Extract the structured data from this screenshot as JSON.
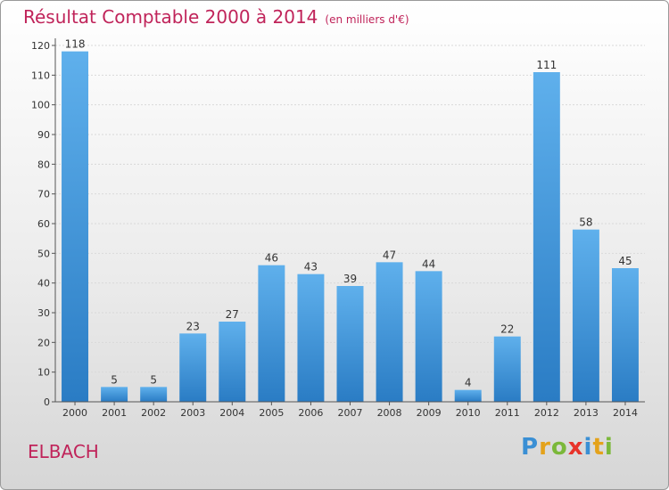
{
  "header": {
    "title": "Résultat Comptable 2000 à 2014",
    "unit": "(en milliers d'€)"
  },
  "footer": {
    "commune": "ELBACH",
    "logo": "Proxiti"
  },
  "colors": {
    "title": "#c0245a",
    "bar_top": "#5fb0ec",
    "bar_bottom": "#2a7cc4"
  },
  "chart_data": {
    "type": "bar",
    "title": "Résultat Comptable 2000 à 2014",
    "subtitle": "(en milliers d'€)",
    "xlabel": "",
    "ylabel": "",
    "ylim": [
      0,
      120
    ],
    "yticks": [
      0,
      10,
      20,
      30,
      40,
      50,
      60,
      70,
      80,
      90,
      100,
      110,
      120
    ],
    "grid": true,
    "categories": [
      "2000",
      "2001",
      "2002",
      "2003",
      "2004",
      "2005",
      "2006",
      "2007",
      "2008",
      "2009",
      "2010",
      "2011",
      "2012",
      "2013",
      "2014"
    ],
    "values": [
      118,
      5,
      5,
      23,
      27,
      46,
      43,
      39,
      47,
      44,
      4,
      22,
      111,
      58,
      45
    ]
  }
}
